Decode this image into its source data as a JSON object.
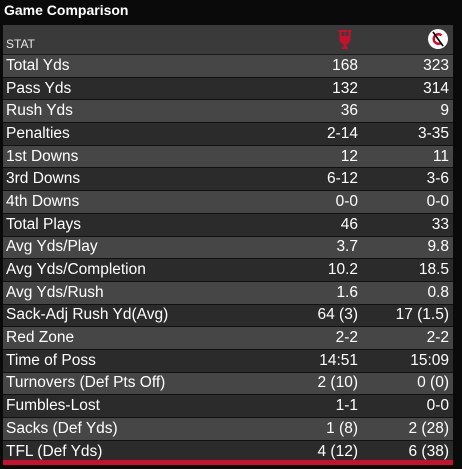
{
  "title": "Game Comparison",
  "header": {
    "stat_label": "STAT",
    "team1_logo": "indiana-logo-icon",
    "team2_logo": "cincinnati-logo-icon",
    "team1_color": "#c8102e",
    "team2_color": "#e00122"
  },
  "rows": [
    {
      "label": "Total Yds",
      "team1": "168",
      "team2": "323"
    },
    {
      "label": "Pass Yds",
      "team1": "132",
      "team2": "314"
    },
    {
      "label": "Rush Yds",
      "team1": "36",
      "team2": "9"
    },
    {
      "label": "Penalties",
      "team1": "2-14",
      "team2": "3-35"
    },
    {
      "label": "1st Downs",
      "team1": "12",
      "team2": "11"
    },
    {
      "label": "3rd Downs",
      "team1": "6-12",
      "team2": "3-6"
    },
    {
      "label": "4th Downs",
      "team1": "0-0",
      "team2": "0-0"
    },
    {
      "label": "Total Plays",
      "team1": "46",
      "team2": "33"
    },
    {
      "label": "Avg Yds/Play",
      "team1": "3.7",
      "team2": "9.8"
    },
    {
      "label": "Avg Yds/Completion",
      "team1": "10.2",
      "team2": "18.5"
    },
    {
      "label": "Avg Yds/Rush",
      "team1": "1.6",
      "team2": "0.8"
    },
    {
      "label": "Sack-Adj Rush Yd(Avg)",
      "team1": "64 (3)",
      "team2": "17 (1.5)"
    },
    {
      "label": "Red Zone",
      "team1": "2-2",
      "team2": "2-2"
    },
    {
      "label": "Time of Poss",
      "team1": "14:51",
      "team2": "15:09"
    },
    {
      "label": "Turnovers (Def Pts Off)",
      "team1": "2 (10)",
      "team2": "0 (0)"
    },
    {
      "label": "Fumbles-Lost",
      "team1": "1-1",
      "team2": "0-0"
    },
    {
      "label": "Sacks (Def Yds)",
      "team1": "1 (8)",
      "team2": "2 (28)"
    },
    {
      "label": "TFL (Def Yds)",
      "team1": "4 (12)",
      "team2": "6 (38)"
    }
  ],
  "footer_color": "#c8102e"
}
